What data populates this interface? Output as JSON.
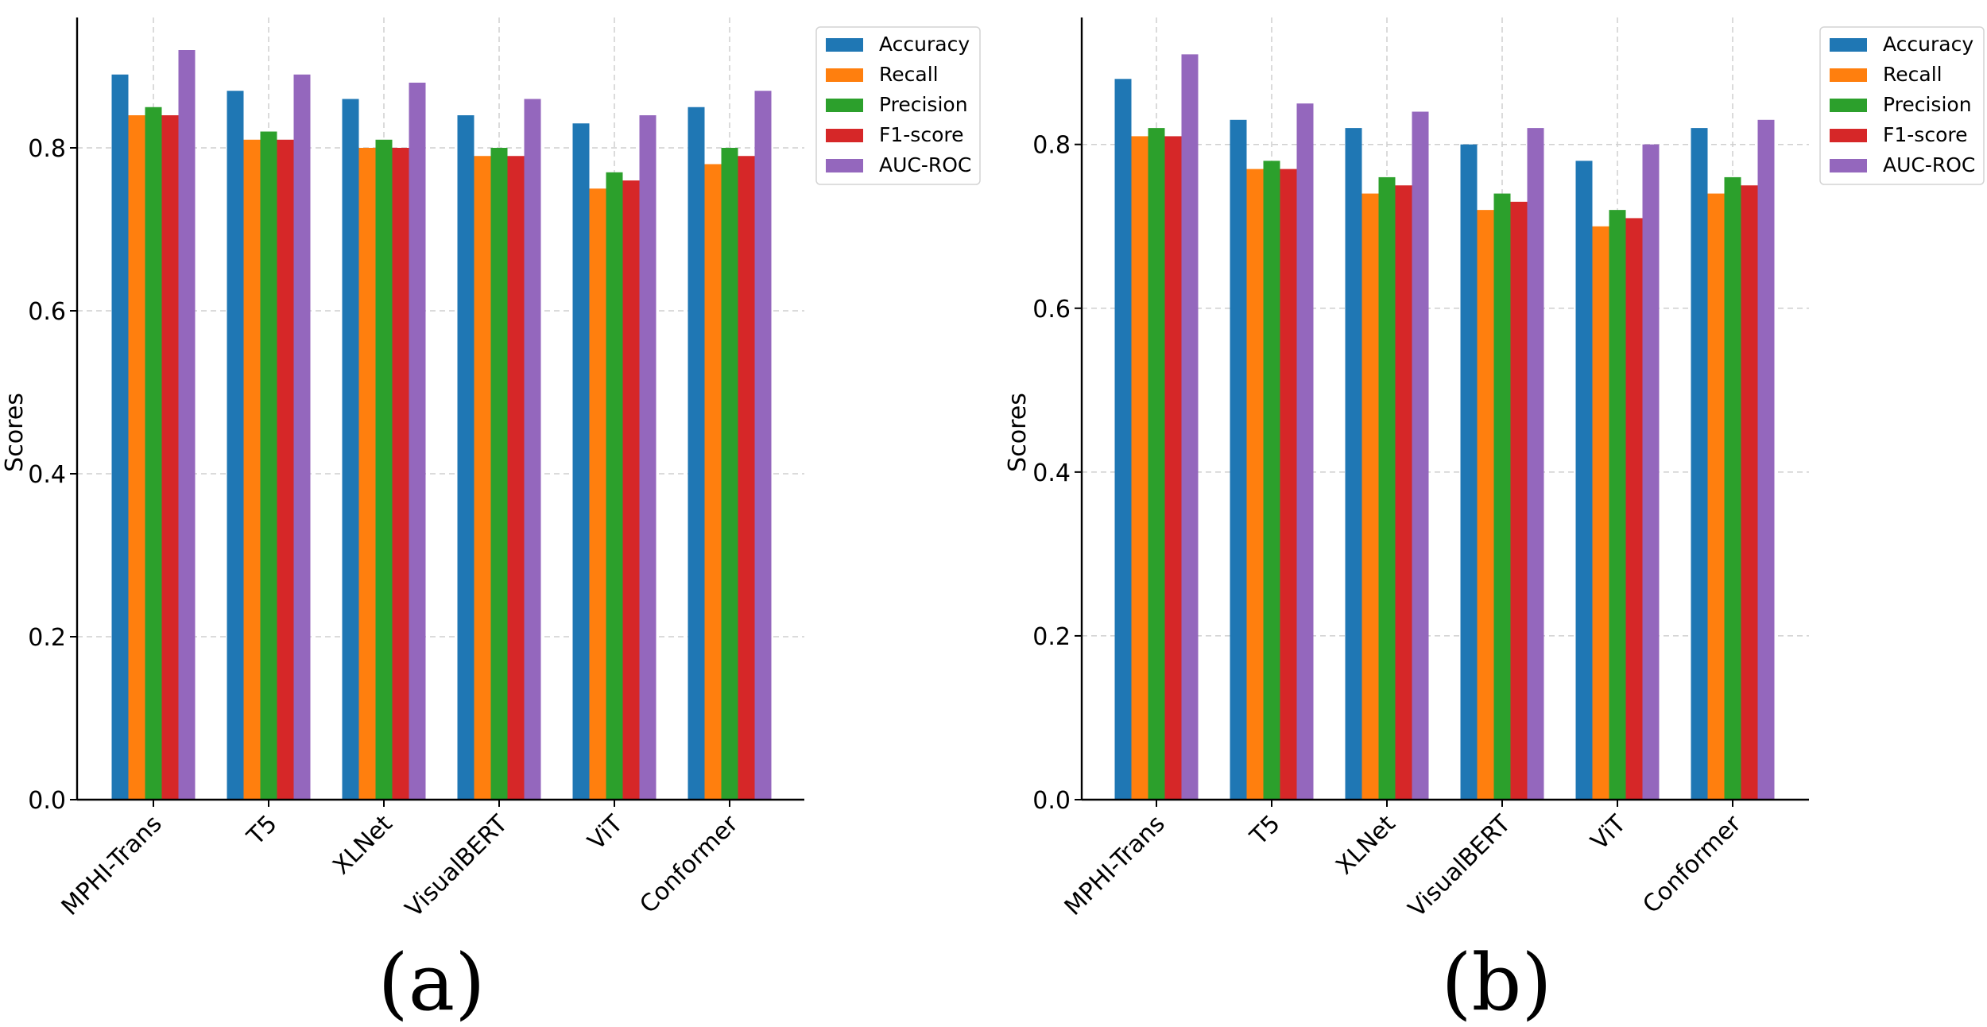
{
  "chart_data": [
    {
      "type": "bar",
      "panel_label": "(a)",
      "categories": [
        "MPHI-Trans",
        "T5",
        "XLNet",
        "VisualBERT",
        "ViT",
        "Conformer"
      ],
      "series": [
        {
          "name": "Accuracy",
          "values": [
            0.89,
            0.87,
            0.86,
            0.84,
            0.83,
            0.85
          ]
        },
        {
          "name": "Recall",
          "values": [
            0.84,
            0.81,
            0.8,
            0.79,
            0.75,
            0.78
          ]
        },
        {
          "name": "Precision",
          "values": [
            0.85,
            0.82,
            0.81,
            0.8,
            0.77,
            0.8
          ]
        },
        {
          "name": "F1-score",
          "values": [
            0.84,
            0.81,
            0.8,
            0.79,
            0.76,
            0.79
          ]
        },
        {
          "name": "AUC-ROC",
          "values": [
            0.92,
            0.89,
            0.88,
            0.86,
            0.84,
            0.87
          ]
        }
      ],
      "title": "",
      "xlabel": "",
      "ylabel": "Scores",
      "ylim": [
        0,
        0.96
      ],
      "yticks": [
        "0.0",
        "0.2",
        "0.4",
        "0.6",
        "0.8"
      ],
      "grid": true,
      "legend": "outside-right-top"
    },
    {
      "type": "bar",
      "panel_label": "(b)",
      "categories": [
        "MPHI-Trans",
        "T5",
        "XLNet",
        "VisualBERT",
        "ViT",
        "Conformer"
      ],
      "series": [
        {
          "name": "Accuracy",
          "values": [
            0.88,
            0.83,
            0.82,
            0.8,
            0.78,
            0.82
          ]
        },
        {
          "name": "Recall",
          "values": [
            0.81,
            0.77,
            0.74,
            0.72,
            0.7,
            0.74
          ]
        },
        {
          "name": "Precision",
          "values": [
            0.82,
            0.78,
            0.76,
            0.74,
            0.72,
            0.76
          ]
        },
        {
          "name": "F1-score",
          "values": [
            0.81,
            0.77,
            0.75,
            0.73,
            0.71,
            0.75
          ]
        },
        {
          "name": "AUC-ROC",
          "values": [
            0.91,
            0.85,
            0.84,
            0.82,
            0.8,
            0.83
          ]
        }
      ],
      "title": "",
      "xlabel": "",
      "ylabel": "Scores",
      "ylim": [
        0,
        0.955
      ],
      "yticks": [
        "0.0",
        "0.2",
        "0.4",
        "0.6",
        "0.8"
      ],
      "grid": true,
      "legend": "outside-right-top"
    }
  ],
  "colors": {
    "Accuracy": "#1f77b4",
    "Recall": "#ff7f0e",
    "Precision": "#2ca02c",
    "F1-score": "#d62728",
    "AUC-ROC": "#9467bd"
  }
}
